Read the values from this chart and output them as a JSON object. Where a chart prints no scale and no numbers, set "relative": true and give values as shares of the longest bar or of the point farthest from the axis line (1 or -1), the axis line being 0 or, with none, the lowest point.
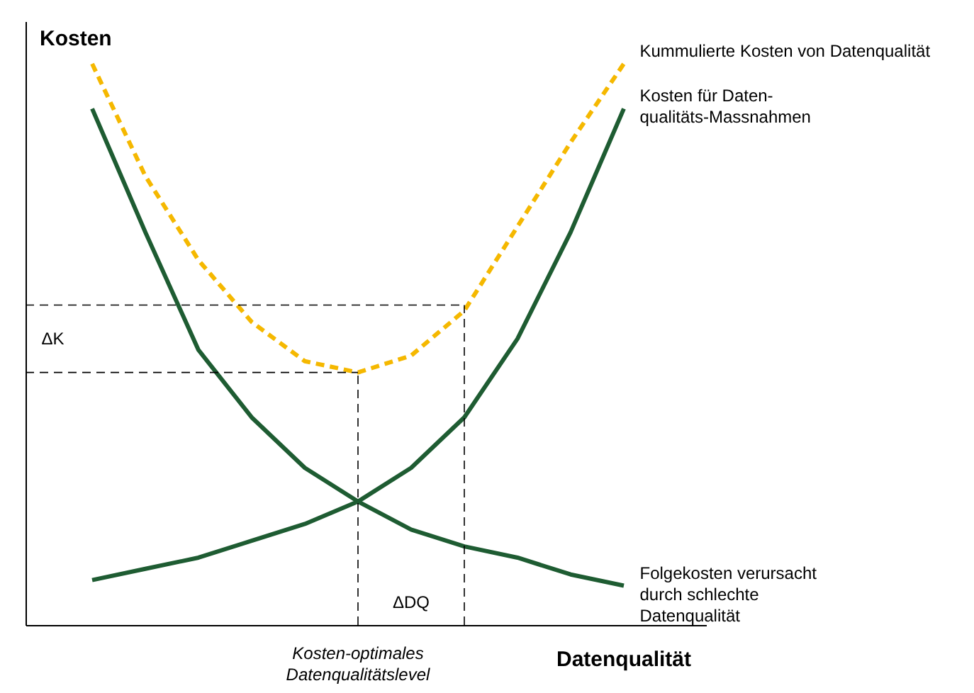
{
  "chart_data": {
    "type": "line",
    "relative": true,
    "xlabel": "Datenqualität",
    "ylabel": "Kosten",
    "categories": [
      null,
      null,
      null,
      null,
      null,
      null,
      null,
      null,
      null,
      null,
      null
    ],
    "series": [
      {
        "name": "Kummulierte Kosten von Datenqualität",
        "color": "#f5b800",
        "line_style": "dashed",
        "values": [
          1.0,
          0.8,
          0.65,
          0.54,
          0.47,
          0.45,
          0.48,
          0.56,
          0.71,
          0.86,
          1.0
        ]
      },
      {
        "name": "Kosten für Daten-\nqualitäts-Massnahmen",
        "color": "#1e5c32",
        "values": [
          0.08,
          0.1,
          0.12,
          0.15,
          0.18,
          0.22,
          0.28,
          0.37,
          0.51,
          0.7,
          0.92
        ]
      },
      {
        "name": "Folgekosten verursacht\ndurch schlechte\nDatenqualität",
        "color": "#1e5c32",
        "values": [
          0.92,
          0.7,
          0.49,
          0.37,
          0.28,
          0.22,
          0.17,
          0.14,
          0.12,
          0.09,
          0.07
        ]
      }
    ],
    "ref_lines": [
      {
        "axis": "y",
        "value": 0.45,
        "color": "#000000",
        "line_style": "dashed"
      },
      {
        "axis": "y",
        "value": 0.57,
        "color": "#000000",
        "line_style": "dashed"
      }
    ],
    "annotations": [
      "ΔK",
      "ΔDQ",
      "Kosten-optimales\nDatenqualitätslevel"
    ],
    "marker": "none"
  }
}
